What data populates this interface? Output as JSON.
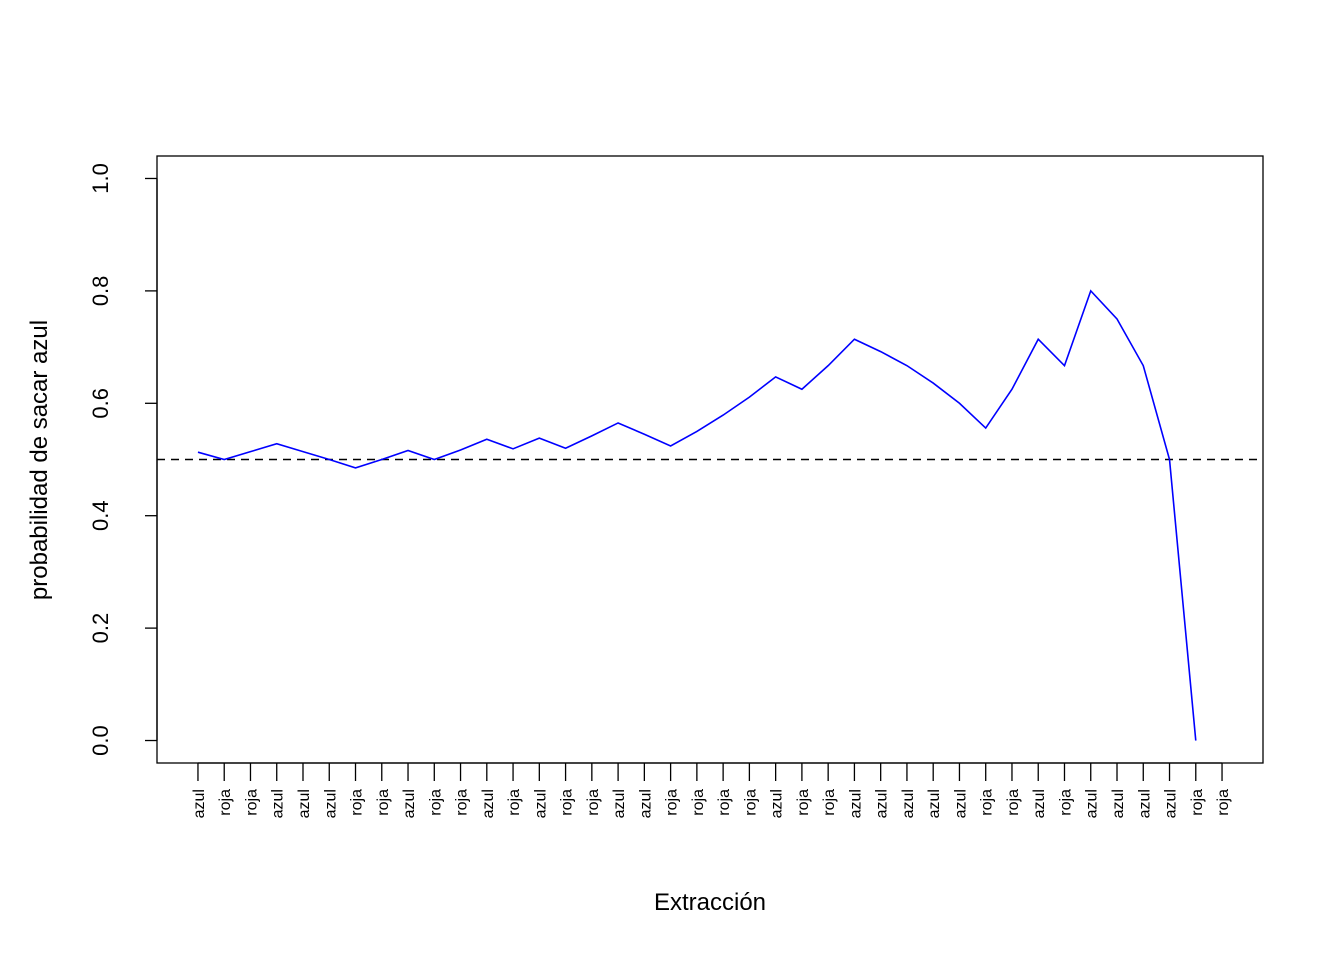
{
  "chart_data": {
    "type": "line",
    "x_label": "Extracción",
    "y_label": "probabilidad de sacar azul",
    "categories": [
      "azul",
      "roja",
      "roja",
      "azul",
      "azul",
      "azul",
      "roja",
      "roja",
      "azul",
      "roja",
      "roja",
      "azul",
      "roja",
      "azul",
      "roja",
      "roja",
      "azul",
      "azul",
      "roja",
      "roja",
      "roja",
      "roja",
      "azul",
      "roja",
      "roja",
      "azul",
      "azul",
      "azul",
      "azul",
      "azul",
      "roja",
      "roja",
      "azul",
      "roja",
      "azul",
      "azul",
      "azul",
      "azul",
      "roja",
      "roja"
    ],
    "series": [
      {
        "name": "probabilidad de sacar azul",
        "color": "#0000ff",
        "values": [
          0.513,
          0.5,
          0.514,
          0.528,
          0.514,
          0.5,
          0.485,
          0.5,
          0.516,
          0.5,
          0.517,
          0.536,
          0.519,
          0.538,
          0.52,
          0.542,
          0.565,
          0.545,
          0.524,
          0.55,
          0.579,
          0.611,
          0.647,
          0.625,
          0.667,
          0.714,
          0.692,
          0.667,
          0.636,
          0.6,
          0.556,
          0.625,
          0.714,
          0.667,
          0.8,
          0.75,
          0.667,
          0.5,
          0,
          null
        ]
      }
    ],
    "hline": 0.5,
    "ylim": [
      -0.04,
      1.04
    ],
    "yticks": [
      {
        "value": 0,
        "label": "0.0"
      },
      0.2,
      0.4,
      0.6,
      0.8,
      {
        "value": 1,
        "label": "1.0"
      }
    ],
    "grid": false
  }
}
